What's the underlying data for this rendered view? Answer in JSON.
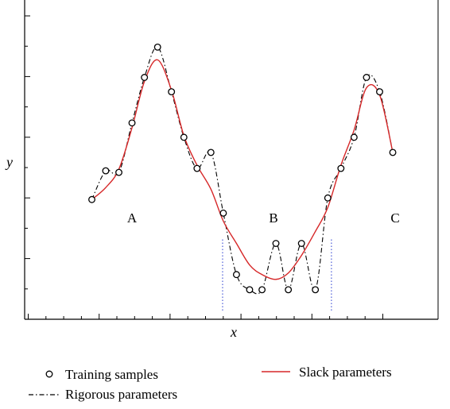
{
  "chart_data": {
    "type": "line",
    "xlabel": "x",
    "ylabel": "y",
    "xlim": [
      0,
      566
    ],
    "ylim": [
      0,
      400
    ],
    "tick_labels_shown": false,
    "grid": false,
    "legend_position": "bottom",
    "series": [
      {
        "name": "Training samples",
        "marker": "circle",
        "color": "#000000",
        "points": [
          [
            92,
            150
          ],
          [
            111,
            186
          ],
          [
            129,
            184
          ],
          [
            147,
            246
          ],
          [
            164,
            303
          ],
          [
            182,
            341
          ],
          [
            201,
            285
          ],
          [
            218,
            228
          ],
          [
            236,
            189
          ],
          [
            255,
            209
          ],
          [
            272,
            133
          ],
          [
            290,
            56
          ],
          [
            308,
            37
          ],
          [
            325,
            37
          ],
          [
            344,
            95
          ],
          [
            361,
            37
          ],
          [
            379,
            95
          ],
          [
            398,
            37
          ],
          [
            415,
            152
          ],
          [
            433,
            189
          ],
          [
            451,
            228
          ],
          [
            468,
            303
          ],
          [
            486,
            285
          ],
          [
            504,
            209
          ]
        ]
      },
      {
        "name": "Rigorous parameters",
        "style": "dash-dot",
        "color": "#000000",
        "points": [
          [
            92,
            150
          ],
          [
            111,
            186
          ],
          [
            129,
            184
          ],
          [
            147,
            246
          ],
          [
            164,
            303
          ],
          [
            182,
            341
          ],
          [
            201,
            285
          ],
          [
            218,
            228
          ],
          [
            236,
            189
          ],
          [
            255,
            209
          ],
          [
            272,
            133
          ],
          [
            290,
            56
          ],
          [
            308,
            37
          ],
          [
            325,
            37
          ],
          [
            344,
            95
          ],
          [
            361,
            37
          ],
          [
            379,
            95
          ],
          [
            398,
            37
          ],
          [
            415,
            152
          ],
          [
            433,
            189
          ],
          [
            451,
            228
          ],
          [
            468,
            303
          ],
          [
            486,
            285
          ],
          [
            504,
            209
          ]
        ]
      },
      {
        "name": "Slack parameters",
        "style": "solid",
        "color": "#d62728",
        "points": [
          [
            92,
            150
          ],
          [
            111,
            165
          ],
          [
            129,
            188
          ],
          [
            147,
            240
          ],
          [
            164,
            298
          ],
          [
            182,
            325
          ],
          [
            201,
            287
          ],
          [
            218,
            230
          ],
          [
            236,
            193
          ],
          [
            255,
            163
          ],
          [
            272,
            123
          ],
          [
            290,
            95
          ],
          [
            308,
            68
          ],
          [
            325,
            56
          ],
          [
            344,
            50
          ],
          [
            361,
            58
          ],
          [
            379,
            80
          ],
          [
            398,
            110
          ],
          [
            415,
            140
          ],
          [
            433,
            193
          ],
          [
            451,
            237
          ],
          [
            468,
            290
          ],
          [
            486,
            281
          ],
          [
            504,
            209
          ]
        ]
      }
    ],
    "region_dividers": [
      {
        "x": 271,
        "color": "#4a5bd8",
        "style": "dotted"
      },
      {
        "x": 420,
        "color": "#4a5bd8",
        "style": "dotted"
      }
    ],
    "region_labels": [
      {
        "text": "A",
        "x": 166,
        "y": 130
      },
      {
        "text": "B",
        "x": 344,
        "y": 130
      },
      {
        "text": "C",
        "x": 497,
        "y": 130
      }
    ],
    "legend": {
      "training": "Training samples",
      "rigorous": "Rigorous parameters",
      "slack": "Slack parameters"
    }
  }
}
